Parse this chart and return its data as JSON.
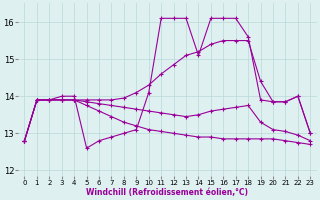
{
  "background_color": "#dff0f0",
  "grid_color": "#b8d8d8",
  "line_color": "#990099",
  "marker": "+",
  "xlabel": "Windchill (Refroidissement éolien,°C)",
  "xlim": [
    -0.5,
    23.5
  ],
  "ylim": [
    11.85,
    16.5
  ],
  "yticks": [
    12,
    13,
    14,
    15,
    16
  ],
  "xticks": [
    0,
    1,
    2,
    3,
    4,
    5,
    6,
    7,
    8,
    9,
    10,
    11,
    12,
    13,
    14,
    15,
    16,
    17,
    18,
    19,
    20,
    21,
    22,
    23
  ],
  "series": [
    [
      12.8,
      13.9,
      13.9,
      14.0,
      14.0,
      12.6,
      12.8,
      12.9,
      13.0,
      13.1,
      14.1,
      16.1,
      16.1,
      16.1,
      15.1,
      16.1,
      16.1,
      16.1,
      15.6,
      13.9,
      13.85,
      13.85,
      14.0,
      13.0
    ],
    [
      12.8,
      13.9,
      13.9,
      13.9,
      13.9,
      13.9,
      13.9,
      13.9,
      13.95,
      14.1,
      14.3,
      14.6,
      14.85,
      15.1,
      15.2,
      15.4,
      15.5,
      15.5,
      15.5,
      14.4,
      13.85,
      13.85,
      14.0,
      13.0
    ],
    [
      12.8,
      13.9,
      13.9,
      13.9,
      13.9,
      13.85,
      13.8,
      13.75,
      13.7,
      13.65,
      13.6,
      13.55,
      13.5,
      13.45,
      13.5,
      13.6,
      13.65,
      13.7,
      13.75,
      13.3,
      13.1,
      13.05,
      12.95,
      12.8
    ],
    [
      12.8,
      13.9,
      13.9,
      13.9,
      13.9,
      13.75,
      13.6,
      13.45,
      13.3,
      13.2,
      13.1,
      13.05,
      13.0,
      12.95,
      12.9,
      12.9,
      12.85,
      12.85,
      12.85,
      12.85,
      12.85,
      12.8,
      12.75,
      12.7
    ]
  ]
}
